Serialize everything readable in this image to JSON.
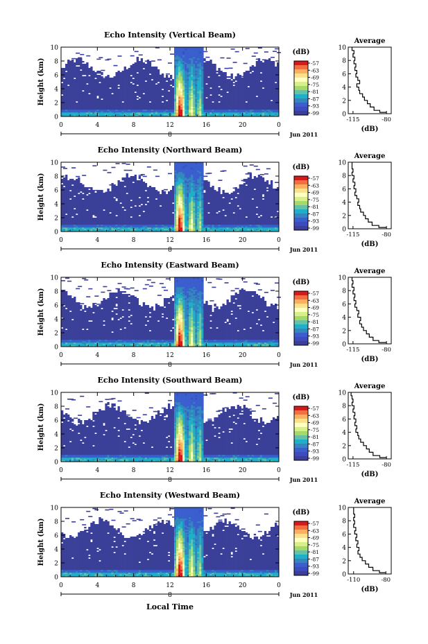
{
  "figure": {
    "xlabel_bottom": "Local Time",
    "date_label": "Jun 2011",
    "day_label": "8"
  },
  "colorbar": {
    "label": "(dB)",
    "ticks": [
      "-57",
      "-63",
      "-69",
      "-75",
      "-81",
      "-87",
      "-93",
      "-99"
    ],
    "colors": [
      "#d7191c",
      "#f46d43",
      "#fdae61",
      "#fee08b",
      "#ffffbf",
      "#d9ef8b",
      "#a6d96a",
      "#66c2a5",
      "#1fb0c9",
      "#3288bd",
      "#3a5fcd",
      "#3b4cc0",
      "#3b3f99"
    ]
  },
  "chart_data": [
    {
      "type": "heatmap",
      "title": "Echo Intensity (Vertical Beam)",
      "ylabel": "Height (km)",
      "xlim": [
        0,
        24
      ],
      "ylim": [
        0,
        10
      ],
      "xticks": [
        "0",
        "4",
        "8",
        "12",
        "16",
        "20",
        "0"
      ],
      "yticks": [
        "0",
        "2",
        "4",
        "6",
        "8",
        "10"
      ],
      "profile": {
        "title": "Average",
        "xlabel": "(dB)",
        "xticks": [
          "-115",
          "-80"
        ],
        "xlim": [
          -120,
          -75
        ],
        "yticks": [
          "0",
          "2",
          "4",
          "6",
          "8",
          "10"
        ],
        "height_km": [
          0.2,
          0.5,
          1,
          1.5,
          2,
          2.5,
          3,
          3.5,
          4,
          4.5,
          5,
          5.5,
          6,
          6.5,
          7,
          7.5,
          8,
          8.5,
          9,
          9.5,
          10
        ],
        "avg_db": [
          -80,
          -87,
          -93,
          -97,
          -100,
          -103,
          -105,
          -108,
          -109,
          -111,
          -108,
          -110,
          -112,
          -111,
          -113,
          -112,
          -114,
          -113,
          -115,
          -114,
          -116
        ]
      }
    },
    {
      "type": "heatmap",
      "title": "Echo Intensity (Northward Beam)",
      "ylabel": "Height (km)",
      "xlim": [
        0,
        24
      ],
      "ylim": [
        0,
        10
      ],
      "xticks": [
        "0",
        "4",
        "8",
        "12",
        "16",
        "20",
        "0"
      ],
      "yticks": [
        "0",
        "2",
        "4",
        "6",
        "8",
        "10"
      ],
      "profile": {
        "title": "Average",
        "xlabel": "(dB)",
        "xticks": [
          "-115",
          "-80"
        ],
        "xlim": [
          -120,
          -75
        ],
        "yticks": [
          "0",
          "2",
          "4",
          "6",
          "8",
          "10"
        ],
        "height_km": [
          0.2,
          0.5,
          1,
          1.5,
          2,
          2.5,
          3,
          3.5,
          4,
          4.5,
          5,
          5.5,
          6,
          6.5,
          7,
          7.5,
          8,
          8.5,
          9,
          9.5,
          10
        ],
        "avg_db": [
          -80,
          -88,
          -95,
          -99,
          -102,
          -104,
          -107,
          -108,
          -110,
          -109,
          -111,
          -113,
          -112,
          -114,
          -113,
          -115,
          -114,
          -116,
          -115,
          -116,
          -116
        ]
      }
    },
    {
      "type": "heatmap",
      "title": "Echo Intensity (Eastward Beam)",
      "ylabel": "Height (km)",
      "xlim": [
        0,
        24
      ],
      "ylim": [
        0,
        10
      ],
      "xticks": [
        "0",
        "4",
        "8",
        "12",
        "16",
        "20",
        "0"
      ],
      "yticks": [
        "0",
        "2",
        "4",
        "6",
        "8",
        "10"
      ],
      "profile": {
        "title": "Average",
        "xlabel": "(dB)",
        "xticks": [
          "-115",
          "-80"
        ],
        "xlim": [
          -120,
          -75
        ],
        "yticks": [
          "0",
          "2",
          "4",
          "6",
          "8",
          "10"
        ],
        "height_km": [
          0.2,
          0.5,
          1,
          1.5,
          2,
          2.5,
          3,
          3.5,
          4,
          4.5,
          5,
          5.5,
          6,
          6.5,
          7,
          7.5,
          8,
          8.5,
          9,
          9.5,
          10
        ],
        "avg_db": [
          -80,
          -88,
          -94,
          -98,
          -101,
          -104,
          -106,
          -108,
          -107,
          -110,
          -109,
          -111,
          -113,
          -112,
          -114,
          -113,
          -115,
          -114,
          -116,
          -115,
          -116
        ]
      }
    },
    {
      "type": "heatmap",
      "title": "Echo Intensity (Southward Beam)",
      "ylabel": "Height (km)",
      "xlim": [
        0,
        24
      ],
      "ylim": [
        0,
        10
      ],
      "xticks": [
        "0",
        "4",
        "8",
        "12",
        "16",
        "20",
        "0"
      ],
      "yticks": [
        "0",
        "2",
        "4",
        "6",
        "8",
        "10"
      ],
      "profile": {
        "title": "Average",
        "xlabel": "(dB)",
        "xticks": [
          "-115",
          "-80"
        ],
        "xlim": [
          -120,
          -75
        ],
        "yticks": [
          "0",
          "2",
          "4",
          "6",
          "8",
          "10"
        ],
        "height_km": [
          0.2,
          0.5,
          1,
          1.5,
          2,
          2.5,
          3,
          3.5,
          4,
          4.5,
          5,
          5.5,
          6,
          6.5,
          7,
          7.5,
          8,
          8.5,
          9,
          9.5,
          10
        ],
        "avg_db": [
          -80,
          -87,
          -94,
          -98,
          -101,
          -104,
          -107,
          -109,
          -110,
          -112,
          -111,
          -113,
          -112,
          -114,
          -113,
          -115,
          -114,
          -116,
          -115,
          -116,
          -117
        ]
      }
    },
    {
      "type": "heatmap",
      "title": "Echo Intensity (Westward Beam)",
      "ylabel": "Height (km)",
      "xlim": [
        0,
        24
      ],
      "ylim": [
        0,
        10
      ],
      "xticks": [
        "0",
        "4",
        "8",
        "12",
        "16",
        "20",
        "0"
      ],
      "yticks": [
        "0",
        "2",
        "4",
        "6",
        "8",
        "10"
      ],
      "profile": {
        "title": "Average",
        "xlabel": "(dB)",
        "xticks": [
          "-110",
          "-80"
        ],
        "xlim": [
          -115,
          -75
        ],
        "yticks": [
          "0",
          "2",
          "4",
          "6",
          "8",
          "10"
        ],
        "height_km": [
          0.2,
          0.5,
          1,
          1.5,
          2,
          2.5,
          3,
          3.5,
          4,
          4.5,
          5,
          5.5,
          6,
          6.5,
          7,
          7.5,
          8,
          8.5,
          9,
          9.5,
          10
        ],
        "avg_db": [
          -80,
          -86,
          -92,
          -96,
          -99,
          -102,
          -104,
          -106,
          -105,
          -107,
          -106,
          -108,
          -107,
          -109,
          -108,
          -110,
          -109,
          -110,
          -109,
          -110,
          -110
        ]
      }
    }
  ]
}
